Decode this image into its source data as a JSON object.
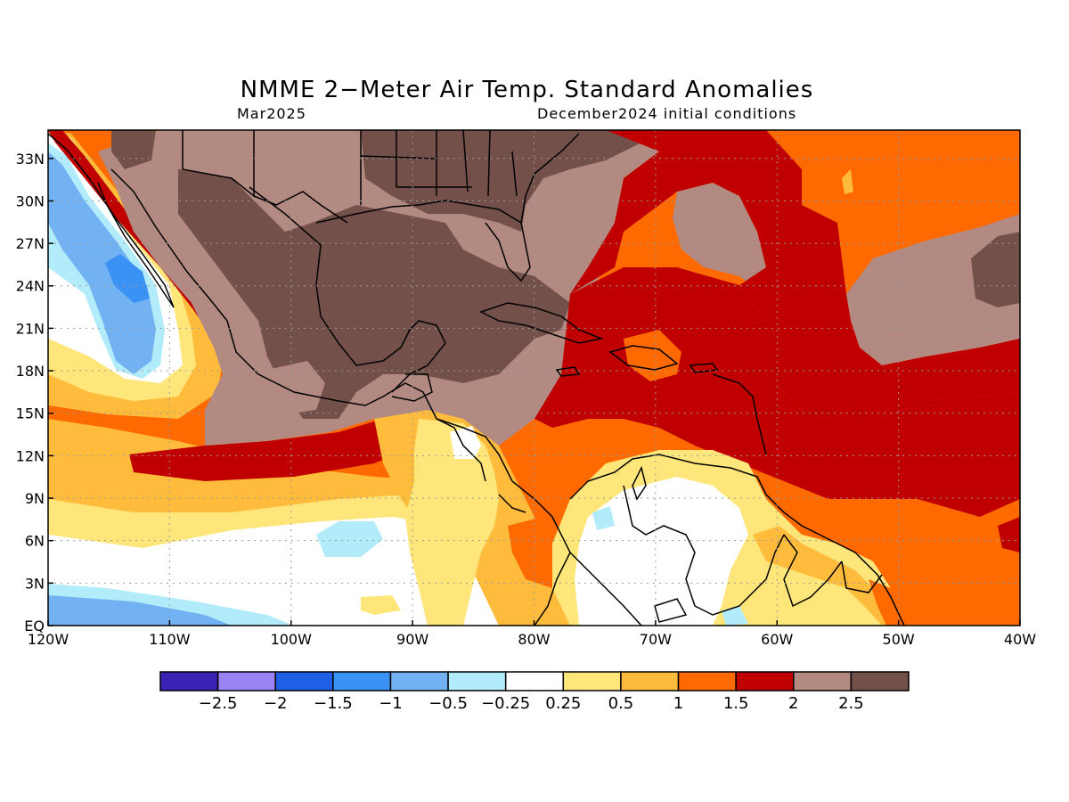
{
  "title": "NMME 2−Meter Air Temp. Standard Anomalies",
  "subtitle_left": "Mar2025",
  "subtitle_right": "December2024 initial conditions",
  "map": {
    "lon_range": [
      -120,
      -40
    ],
    "lat_range": [
      0,
      35
    ],
    "lat_ticks": [
      {
        "value": 33,
        "label": "33N"
      },
      {
        "value": 30,
        "label": "30N"
      },
      {
        "value": 27,
        "label": "27N"
      },
      {
        "value": 24,
        "label": "24N"
      },
      {
        "value": 21,
        "label": "21N"
      },
      {
        "value": 18,
        "label": "18N"
      },
      {
        "value": 15,
        "label": "15N"
      },
      {
        "value": 12,
        "label": "12N"
      },
      {
        "value": 9,
        "label": "9N"
      },
      {
        "value": 6,
        "label": "6N"
      },
      {
        "value": 3,
        "label": "3N"
      },
      {
        "value": 0,
        "label": "EQ"
      }
    ],
    "lon_ticks": [
      {
        "value": -120,
        "label": "120W"
      },
      {
        "value": -110,
        "label": "110W"
      },
      {
        "value": -100,
        "label": "100W"
      },
      {
        "value": -90,
        "label": "90W"
      },
      {
        "value": -80,
        "label": "80W"
      },
      {
        "value": -70,
        "label": "70W"
      },
      {
        "value": -60,
        "label": "60W"
      },
      {
        "value": -50,
        "label": "50W"
      },
      {
        "value": -40,
        "label": "40W"
      }
    ],
    "grid": true
  },
  "colorbar": {
    "colors": [
      "#3a22b4",
      "#9a83f2",
      "#1f5fe6",
      "#3a92f5",
      "#73b2f2",
      "#b2ecfa",
      "#ffffff",
      "#ffe67a",
      "#ffbb3c",
      "#ff6a00",
      "#c00000",
      "#b28a82",
      "#74504a"
    ],
    "labels": [
      "−2.5",
      "−2",
      "−1.5",
      "−1",
      "−0.5",
      "−0.25",
      "0.25",
      "0.5",
      "1",
      "1.5",
      "2",
      "2.5"
    ]
  }
}
